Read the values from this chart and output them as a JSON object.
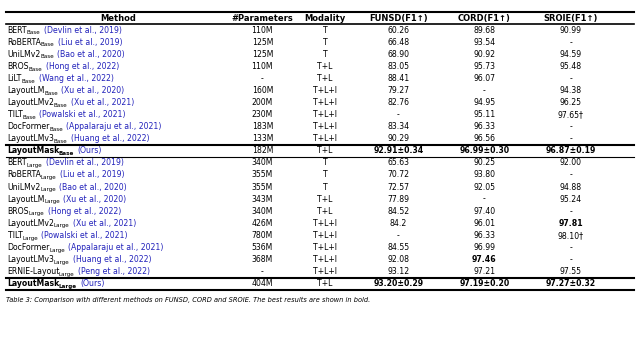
{
  "header": [
    "Method",
    "#Parameters",
    "Modality",
    "FUNSD(F1↑)",
    "CORD(F1↑)",
    "SROIE(F1↑)"
  ],
  "rows_base": [
    {
      "name": "BERT",
      "sub": "Base",
      "cite": "(Devlin et al., 2019)",
      "params": "110M",
      "mod": "T",
      "funsd": "60.26",
      "cord": "89.68",
      "sroie": "90.99"
    },
    {
      "name": "RoBERTA",
      "sub": "Base",
      "cite": "(Liu et al., 2019)",
      "params": "125M",
      "mod": "T",
      "funsd": "66.48",
      "cord": "93.54",
      "sroie": "-"
    },
    {
      "name": "UniLMv2",
      "sub": "Base",
      "cite": "(Bao et al., 2020)",
      "params": "125M",
      "mod": "T",
      "funsd": "68.90",
      "cord": "90.92",
      "sroie": "94.59"
    },
    {
      "name": "BROS",
      "sub": "Base",
      "cite": "(Hong et al., 2022)",
      "params": "110M",
      "mod": "T+L",
      "funsd": "83.05",
      "cord": "95.73",
      "sroie": "95.48"
    },
    {
      "name": "LiLT",
      "sub": "Base",
      "cite": "(Wang et al., 2022)",
      "params": "-",
      "mod": "T+L",
      "funsd": "88.41",
      "cord": "96.07",
      "sroie": "-"
    },
    {
      "name": "LayoutLM",
      "sub": "Base",
      "cite": "(Xu et al., 2020)",
      "params": "160M",
      "mod": "T+L+I",
      "funsd": "79.27",
      "cord": "-",
      "sroie": "94.38"
    },
    {
      "name": "LayoutLMv2",
      "sub": "Base",
      "cite": "(Xu et al., 2021)",
      "params": "200M",
      "mod": "T+L+I",
      "funsd": "82.76",
      "cord": "94.95",
      "sroie": "96.25"
    },
    {
      "name": "TILT",
      "sub": "Base",
      "cite": "(Powalski et al., 2021)",
      "params": "230M",
      "mod": "T+L+I",
      "funsd": "-",
      "cord": "95.11",
      "sroie": "97.65†"
    },
    {
      "name": "DocFormer",
      "sub": "Base",
      "cite": "(Appalaraju et al., 2021)",
      "params": "183M",
      "mod": "T+L+I",
      "funsd": "83.34",
      "cord": "96.33",
      "sroie": "-"
    },
    {
      "name": "LayoutLMv3",
      "sub": "Base",
      "cite": "(Huang et al., 2022)",
      "params": "133M",
      "mod": "T+L+I",
      "funsd": "90.29",
      "cord": "96.56",
      "sroie": "-"
    }
  ],
  "row_ours_base": {
    "name": "LayoutMask",
    "sub": "Base",
    "cite": "(Ours)",
    "params": "182M",
    "mod": "T+L",
    "funsd": "92.91±0.34",
    "cord": "96.99±0.30",
    "sroie": "96.87±0.19"
  },
  "rows_large": [
    {
      "name": "BERT",
      "sub": "Large",
      "cite": "(Devlin et al., 2019)",
      "params": "340M",
      "mod": "T",
      "funsd": "65.63",
      "cord": "90.25",
      "sroie": "92.00",
      "bold_funsd": false,
      "bold_cord": false,
      "bold_sroie": false
    },
    {
      "name": "RoBERTA",
      "sub": "Large",
      "cite": "(Liu et al., 2019)",
      "params": "355M",
      "mod": "T",
      "funsd": "70.72",
      "cord": "93.80",
      "sroie": "-",
      "bold_funsd": false,
      "bold_cord": false,
      "bold_sroie": false
    },
    {
      "name": "UniLMv2",
      "sub": "Large",
      "cite": "(Bao et al., 2020)",
      "params": "355M",
      "mod": "T",
      "funsd": "72.57",
      "cord": "92.05",
      "sroie": "94.88",
      "bold_funsd": false,
      "bold_cord": false,
      "bold_sroie": false
    },
    {
      "name": "LayoutLM",
      "sub": "Large",
      "cite": "(Xu et al., 2020)",
      "params": "343M",
      "mod": "T+L",
      "funsd": "77.89",
      "cord": "-",
      "sroie": "95.24",
      "bold_funsd": false,
      "bold_cord": false,
      "bold_sroie": false
    },
    {
      "name": "BROS",
      "sub": "Large",
      "cite": "(Hong et al., 2022)",
      "params": "340M",
      "mod": "T+L",
      "funsd": "84.52",
      "cord": "97.40",
      "sroie": "-",
      "bold_funsd": false,
      "bold_cord": false,
      "bold_sroie": false
    },
    {
      "name": "LayoutLMv2",
      "sub": "Large",
      "cite": "(Xu et al., 2021)",
      "params": "426M",
      "mod": "T+L+I",
      "funsd": "84.2",
      "cord": "96.01",
      "sroie": "97.81",
      "bold_funsd": false,
      "bold_cord": false,
      "bold_sroie": true
    },
    {
      "name": "TILT",
      "sub": "Large",
      "cite": "(Powalski et al., 2021)",
      "params": "780M",
      "mod": "T+L+I",
      "funsd": "-",
      "cord": "96.33",
      "sroie": "98.10†",
      "bold_funsd": false,
      "bold_cord": false,
      "bold_sroie": false
    },
    {
      "name": "DocFormer",
      "sub": "Large",
      "cite": "(Appalaraju et al., 2021)",
      "params": "536M",
      "mod": "T+L+I",
      "funsd": "84.55",
      "cord": "96.99",
      "sroie": "-",
      "bold_funsd": false,
      "bold_cord": false,
      "bold_sroie": false
    },
    {
      "name": "LayoutLMv3",
      "sub": "Large",
      "cite": "(Huang et al., 2022)",
      "params": "368M",
      "mod": "T+L+I",
      "funsd": "92.08",
      "cord": "97.46",
      "sroie": "-",
      "bold_funsd": false,
      "bold_cord": true,
      "bold_sroie": false
    },
    {
      "name": "ERNIE-Layout",
      "sub": "Large",
      "cite": "(Peng et al., 2022)",
      "params": "-",
      "mod": "T+L+I",
      "funsd": "93.12",
      "cord": "97.21",
      "sroie": "97.55",
      "bold_funsd": false,
      "bold_cord": false,
      "bold_sroie": false
    }
  ],
  "row_ours_large": {
    "name": "LayoutMask",
    "sub": "Large",
    "cite": "(Ours)",
    "params": "404M",
    "mod": "T+L",
    "funsd": "93.20±0.29",
    "cord": "97.19±0.20",
    "sroie": "97.27±0.32"
  },
  "caption": "Table 3: Comparison with different methods on FUNSD, CORD and SROIE. The best results are shown in bold.",
  "ref_color": "#2222bb",
  "black": "#000000"
}
